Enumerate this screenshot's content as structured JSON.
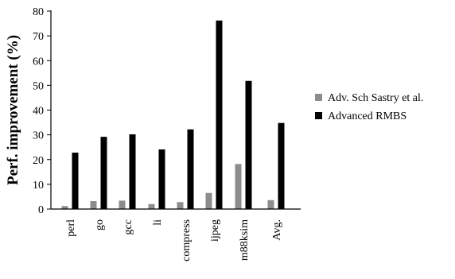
{
  "chart_data": {
    "type": "bar",
    "title": "",
    "xlabel": "",
    "ylabel": "Perf. improvement (%)",
    "ylim": [
      0,
      80
    ],
    "yticks": [
      0,
      10,
      20,
      30,
      40,
      50,
      60,
      70,
      80
    ],
    "grid": false,
    "legend_position": "right",
    "categories": [
      "perl",
      "go",
      "gcc",
      "li",
      "compress",
      "ijpeg",
      "m88ksim",
      "Avg."
    ],
    "series": [
      {
        "name": "Adv. Sch Sastry et al.",
        "color": "#8c8c8c",
        "values": [
          1.2,
          3.2,
          3.4,
          2.0,
          2.8,
          6.5,
          18.2,
          3.6
        ]
      },
      {
        "name": "Advanced RMBS",
        "color": "#000000",
        "values": [
          22.8,
          29.2,
          30.2,
          24.1,
          32.2,
          76.2,
          51.8,
          34.8
        ]
      }
    ]
  }
}
